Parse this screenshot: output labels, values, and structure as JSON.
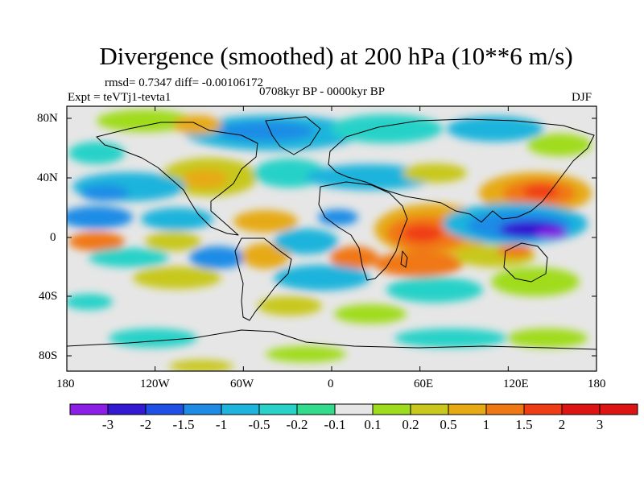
{
  "title": "Divergence (smoothed) at 200 hPa (10**6 m/s)",
  "stats_line": "rmsd= 0.7347 diff= -0.00106172",
  "period": "0708kyr BP - 0000kyr BP",
  "experiment": "Expt = teVTj1-tevta1",
  "season": "DJF",
  "lat_ticks": [
    "80N",
    "40N",
    "0",
    "40S",
    "80S"
  ],
  "lon_ticks": [
    "180",
    "120W",
    "60W",
    "0",
    "60E",
    "120E",
    "180"
  ],
  "colorbar": {
    "labels": [
      "-3",
      "-2",
      "-1.5",
      "-1",
      "-0.5",
      "-0.2",
      "-0.1",
      "0.1",
      "0.2",
      "0.5",
      "1",
      "1.5",
      "2",
      "3"
    ],
    "colors": [
      "#8c1ee6",
      "#3219d2",
      "#1e50e6",
      "#1e8ce6",
      "#1eb4dc",
      "#28d2c8",
      "#32dc8c",
      "#e6e6e6",
      "#a0dc1e",
      "#c8c81e",
      "#e6aa14",
      "#f07814",
      "#f03c14",
      "#dc1414"
    ]
  },
  "colors": {
    "neutral": "#e6e6e6",
    "coast": "#000000"
  }
}
